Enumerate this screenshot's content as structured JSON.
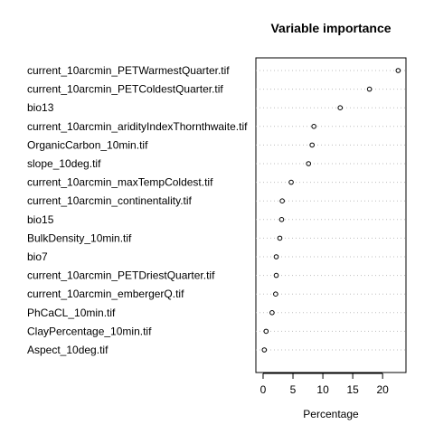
{
  "chart_data": {
    "type": "scatter",
    "title": "Variable importance",
    "xlabel": "Percentage",
    "ylabel": "",
    "xlim": [
      -0.3,
      23
    ],
    "xticks": [
      0,
      5,
      10,
      15,
      20
    ],
    "grid": "dotted horizontal guides",
    "categories": [
      "current_10arcmin_PETWarmestQuarter.tif",
      "current_10arcmin_PETColdestQuarter.tif",
      "bio13",
      "current_10arcmin_aridityIndexThornthwaite.tif",
      "OrganicCarbon_10min.tif",
      "slope_10deg.tif",
      "current_10arcmin_maxTempColdest.tif",
      "current_10arcmin_continentality.tif",
      "bio15",
      "BulkDensity_10min.tif",
      "bio7",
      "current_10arcmin_PETDriestQuarter.tif",
      "current_10arcmin_embergerQ.tif",
      "PhCaCL_10min.tif",
      "ClayPercentage_10min.tif",
      "Aspect_10deg.tif"
    ],
    "values": [
      22.6,
      17.8,
      12.9,
      8.5,
      8.2,
      7.6,
      4.7,
      3.2,
      3.1,
      2.8,
      2.2,
      2.2,
      2.1,
      1.5,
      0.5,
      0.2
    ]
  }
}
